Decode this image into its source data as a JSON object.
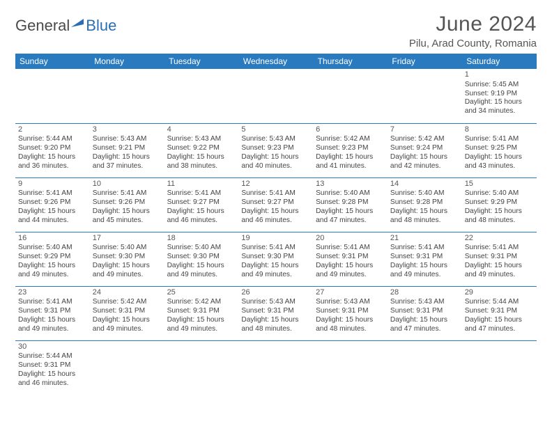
{
  "logo": {
    "part1": "General",
    "part2": "Blue"
  },
  "title": "June 2024",
  "location": "Pilu, Arad County, Romania",
  "colors": {
    "header_bg": "#2a7ac0",
    "header_text": "#ffffff",
    "border": "#2a7ac0",
    "logo_accent": "#2a6fb5",
    "text": "#444444"
  },
  "weekdays": [
    "Sunday",
    "Monday",
    "Tuesday",
    "Wednesday",
    "Thursday",
    "Friday",
    "Saturday"
  ],
  "weeks": [
    [
      null,
      null,
      null,
      null,
      null,
      null,
      {
        "n": "1",
        "sunrise": "Sunrise: 5:45 AM",
        "sunset": "Sunset: 9:19 PM",
        "day1": "Daylight: 15 hours",
        "day2": "and 34 minutes."
      }
    ],
    [
      {
        "n": "2",
        "sunrise": "Sunrise: 5:44 AM",
        "sunset": "Sunset: 9:20 PM",
        "day1": "Daylight: 15 hours",
        "day2": "and 36 minutes."
      },
      {
        "n": "3",
        "sunrise": "Sunrise: 5:43 AM",
        "sunset": "Sunset: 9:21 PM",
        "day1": "Daylight: 15 hours",
        "day2": "and 37 minutes."
      },
      {
        "n": "4",
        "sunrise": "Sunrise: 5:43 AM",
        "sunset": "Sunset: 9:22 PM",
        "day1": "Daylight: 15 hours",
        "day2": "and 38 minutes."
      },
      {
        "n": "5",
        "sunrise": "Sunrise: 5:43 AM",
        "sunset": "Sunset: 9:23 PM",
        "day1": "Daylight: 15 hours",
        "day2": "and 40 minutes."
      },
      {
        "n": "6",
        "sunrise": "Sunrise: 5:42 AM",
        "sunset": "Sunset: 9:23 PM",
        "day1": "Daylight: 15 hours",
        "day2": "and 41 minutes."
      },
      {
        "n": "7",
        "sunrise": "Sunrise: 5:42 AM",
        "sunset": "Sunset: 9:24 PM",
        "day1": "Daylight: 15 hours",
        "day2": "and 42 minutes."
      },
      {
        "n": "8",
        "sunrise": "Sunrise: 5:41 AM",
        "sunset": "Sunset: 9:25 PM",
        "day1": "Daylight: 15 hours",
        "day2": "and 43 minutes."
      }
    ],
    [
      {
        "n": "9",
        "sunrise": "Sunrise: 5:41 AM",
        "sunset": "Sunset: 9:26 PM",
        "day1": "Daylight: 15 hours",
        "day2": "and 44 minutes."
      },
      {
        "n": "10",
        "sunrise": "Sunrise: 5:41 AM",
        "sunset": "Sunset: 9:26 PM",
        "day1": "Daylight: 15 hours",
        "day2": "and 45 minutes."
      },
      {
        "n": "11",
        "sunrise": "Sunrise: 5:41 AM",
        "sunset": "Sunset: 9:27 PM",
        "day1": "Daylight: 15 hours",
        "day2": "and 46 minutes."
      },
      {
        "n": "12",
        "sunrise": "Sunrise: 5:41 AM",
        "sunset": "Sunset: 9:27 PM",
        "day1": "Daylight: 15 hours",
        "day2": "and 46 minutes."
      },
      {
        "n": "13",
        "sunrise": "Sunrise: 5:40 AM",
        "sunset": "Sunset: 9:28 PM",
        "day1": "Daylight: 15 hours",
        "day2": "and 47 minutes."
      },
      {
        "n": "14",
        "sunrise": "Sunrise: 5:40 AM",
        "sunset": "Sunset: 9:28 PM",
        "day1": "Daylight: 15 hours",
        "day2": "and 48 minutes."
      },
      {
        "n": "15",
        "sunrise": "Sunrise: 5:40 AM",
        "sunset": "Sunset: 9:29 PM",
        "day1": "Daylight: 15 hours",
        "day2": "and 48 minutes."
      }
    ],
    [
      {
        "n": "16",
        "sunrise": "Sunrise: 5:40 AM",
        "sunset": "Sunset: 9:29 PM",
        "day1": "Daylight: 15 hours",
        "day2": "and 49 minutes."
      },
      {
        "n": "17",
        "sunrise": "Sunrise: 5:40 AM",
        "sunset": "Sunset: 9:30 PM",
        "day1": "Daylight: 15 hours",
        "day2": "and 49 minutes."
      },
      {
        "n": "18",
        "sunrise": "Sunrise: 5:40 AM",
        "sunset": "Sunset: 9:30 PM",
        "day1": "Daylight: 15 hours",
        "day2": "and 49 minutes."
      },
      {
        "n": "19",
        "sunrise": "Sunrise: 5:41 AM",
        "sunset": "Sunset: 9:30 PM",
        "day1": "Daylight: 15 hours",
        "day2": "and 49 minutes."
      },
      {
        "n": "20",
        "sunrise": "Sunrise: 5:41 AM",
        "sunset": "Sunset: 9:31 PM",
        "day1": "Daylight: 15 hours",
        "day2": "and 49 minutes."
      },
      {
        "n": "21",
        "sunrise": "Sunrise: 5:41 AM",
        "sunset": "Sunset: 9:31 PM",
        "day1": "Daylight: 15 hours",
        "day2": "and 49 minutes."
      },
      {
        "n": "22",
        "sunrise": "Sunrise: 5:41 AM",
        "sunset": "Sunset: 9:31 PM",
        "day1": "Daylight: 15 hours",
        "day2": "and 49 minutes."
      }
    ],
    [
      {
        "n": "23",
        "sunrise": "Sunrise: 5:41 AM",
        "sunset": "Sunset: 9:31 PM",
        "day1": "Daylight: 15 hours",
        "day2": "and 49 minutes."
      },
      {
        "n": "24",
        "sunrise": "Sunrise: 5:42 AM",
        "sunset": "Sunset: 9:31 PM",
        "day1": "Daylight: 15 hours",
        "day2": "and 49 minutes."
      },
      {
        "n": "25",
        "sunrise": "Sunrise: 5:42 AM",
        "sunset": "Sunset: 9:31 PM",
        "day1": "Daylight: 15 hours",
        "day2": "and 49 minutes."
      },
      {
        "n": "26",
        "sunrise": "Sunrise: 5:43 AM",
        "sunset": "Sunset: 9:31 PM",
        "day1": "Daylight: 15 hours",
        "day2": "and 48 minutes."
      },
      {
        "n": "27",
        "sunrise": "Sunrise: 5:43 AM",
        "sunset": "Sunset: 9:31 PM",
        "day1": "Daylight: 15 hours",
        "day2": "and 48 minutes."
      },
      {
        "n": "28",
        "sunrise": "Sunrise: 5:43 AM",
        "sunset": "Sunset: 9:31 PM",
        "day1": "Daylight: 15 hours",
        "day2": "and 47 minutes."
      },
      {
        "n": "29",
        "sunrise": "Sunrise: 5:44 AM",
        "sunset": "Sunset: 9:31 PM",
        "day1": "Daylight: 15 hours",
        "day2": "and 47 minutes."
      }
    ],
    [
      {
        "n": "30",
        "sunrise": "Sunrise: 5:44 AM",
        "sunset": "Sunset: 9:31 PM",
        "day1": "Daylight: 15 hours",
        "day2": "and 46 minutes."
      },
      null,
      null,
      null,
      null,
      null,
      null
    ]
  ]
}
